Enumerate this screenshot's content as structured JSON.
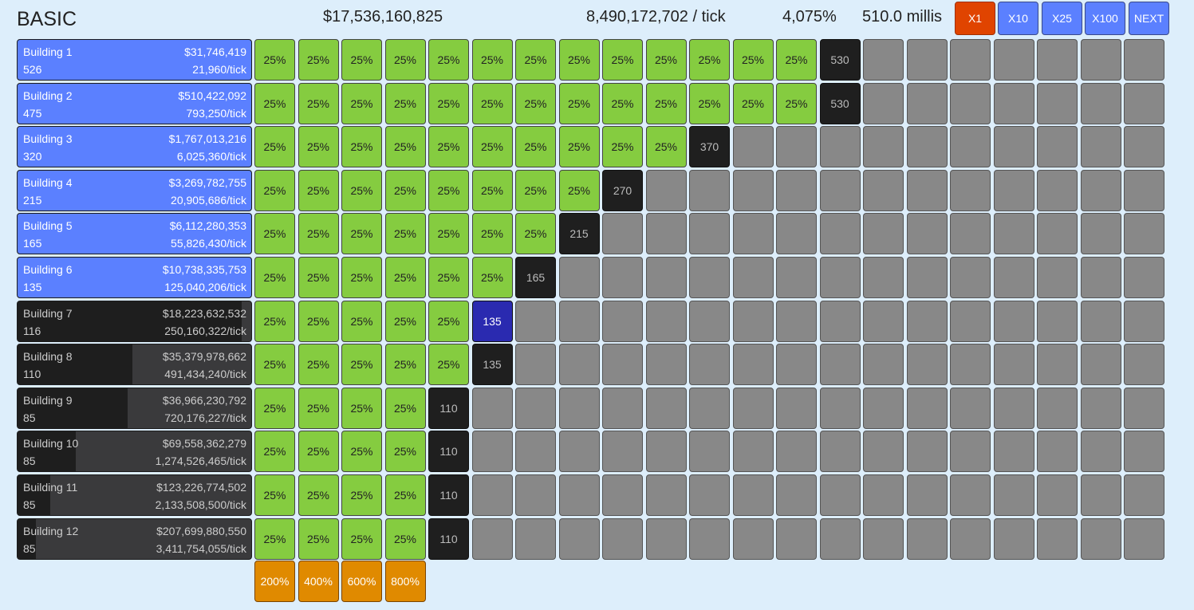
{
  "header": {
    "title": "BASIC",
    "money": "$17,536,160,825",
    "income": "8,490,172,702 / tick",
    "percent": "4,075%",
    "millis": "510.0 millis"
  },
  "multipliers": [
    {
      "label": "X1",
      "active": true
    },
    {
      "label": "X10",
      "active": false
    },
    {
      "label": "X25",
      "active": false
    },
    {
      "label": "X100",
      "active": false
    },
    {
      "label": "NEXT",
      "active": false
    }
  ],
  "colors": {
    "background": "#ddeefb",
    "building_bought": "#5b80ff",
    "upgrade_owned": "#85cc40",
    "upgrade_buy": "#1f1f1f",
    "upgrade_affordable": "#2a2ab0",
    "empty_slot": "#888888",
    "bonus": "#e08a00",
    "active_multiplier": "#e04400"
  },
  "upgrade_label": "25%",
  "total_slots": 21,
  "buildings": [
    {
      "name": "Building 1",
      "count": "526",
      "cost": "$31,746,419",
      "rate": "21,960/tick",
      "bought": true,
      "progress": 1.0,
      "owned_upgrades": 13,
      "next_cost": "530",
      "affordable": false
    },
    {
      "name": "Building 2",
      "count": "475",
      "cost": "$510,422,092",
      "rate": "793,250/tick",
      "bought": true,
      "progress": 1.0,
      "owned_upgrades": 13,
      "next_cost": "530",
      "affordable": false
    },
    {
      "name": "Building 3",
      "count": "320",
      "cost": "$1,767,013,216",
      "rate": "6,025,360/tick",
      "bought": true,
      "progress": 1.0,
      "owned_upgrades": 10,
      "next_cost": "370",
      "affordable": false
    },
    {
      "name": "Building 4",
      "count": "215",
      "cost": "$3,269,782,755",
      "rate": "20,905,686/tick",
      "bought": true,
      "progress": 1.0,
      "owned_upgrades": 8,
      "next_cost": "270",
      "affordable": false
    },
    {
      "name": "Building 5",
      "count": "165",
      "cost": "$6,112,280,353",
      "rate": "55,826,430/tick",
      "bought": true,
      "progress": 1.0,
      "owned_upgrades": 7,
      "next_cost": "215",
      "affordable": false
    },
    {
      "name": "Building 6",
      "count": "135",
      "cost": "$10,738,335,753",
      "rate": "125,040,206/tick",
      "bought": true,
      "progress": 1.0,
      "owned_upgrades": 6,
      "next_cost": "165",
      "affordable": false
    },
    {
      "name": "Building 7",
      "count": "116",
      "cost": "$18,223,632,532",
      "rate": "250,160,322/tick",
      "bought": false,
      "progress": 0.96,
      "owned_upgrades": 5,
      "next_cost": "135",
      "affordable": true
    },
    {
      "name": "Building 8",
      "count": "110",
      "cost": "$35,379,978,662",
      "rate": "491,434,240/tick",
      "bought": false,
      "progress": 0.49,
      "owned_upgrades": 5,
      "next_cost": "135",
      "affordable": false
    },
    {
      "name": "Building 9",
      "count": "85",
      "cost": "$36,966,230,792",
      "rate": "720,176,227/tick",
      "bought": false,
      "progress": 0.47,
      "owned_upgrades": 4,
      "next_cost": "110",
      "affordable": false
    },
    {
      "name": "Building 10",
      "count": "85",
      "cost": "$69,558,362,279",
      "rate": "1,274,526,465/tick",
      "bought": false,
      "progress": 0.25,
      "owned_upgrades": 4,
      "next_cost": "110",
      "affordable": false
    },
    {
      "name": "Building 11",
      "count": "85",
      "cost": "$123,226,774,502",
      "rate": "2,133,508,500/tick",
      "bought": false,
      "progress": 0.14,
      "owned_upgrades": 4,
      "next_cost": "110",
      "affordable": false
    },
    {
      "name": "Building 12",
      "count": "85",
      "cost": "$207,699,880,550",
      "rate": "3,411,754,055/tick",
      "bought": false,
      "progress": 0.08,
      "owned_upgrades": 4,
      "next_cost": "110",
      "affordable": false
    }
  ],
  "bonuses": [
    "200%",
    "400%",
    "600%",
    "800%"
  ]
}
